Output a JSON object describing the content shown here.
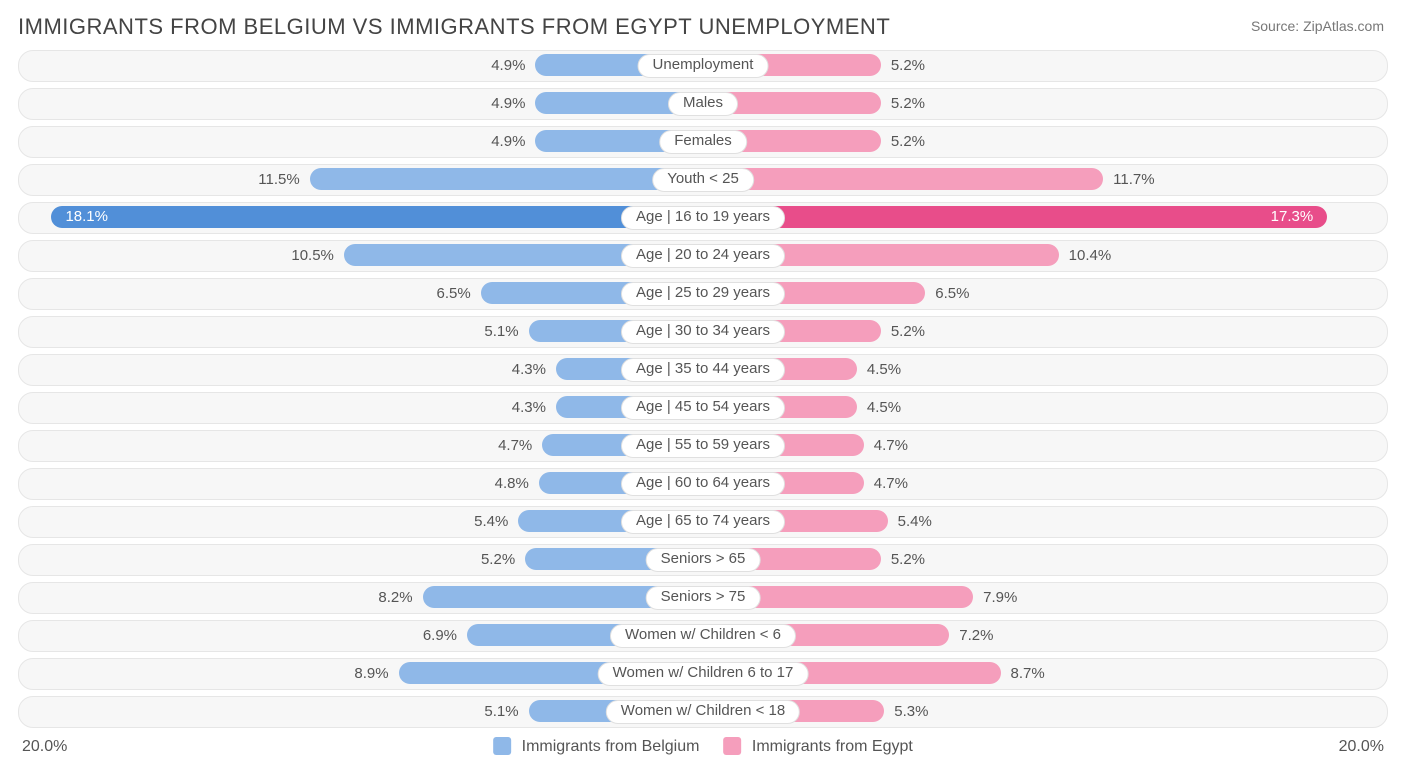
{
  "title": "IMMIGRANTS FROM BELGIUM VS IMMIGRANTS FROM EGYPT UNEMPLOYMENT",
  "source_label": "Source: ZipAtlas.com",
  "chart": {
    "type": "diverging-bar",
    "max_percent": 20.0,
    "axis_left_label": "20.0%",
    "axis_right_label": "20.0%",
    "blue_color": "#8fb8e8",
    "pink_color": "#f59ebc",
    "blue_highlight": "#518fd8",
    "pink_highlight": "#e84d8a",
    "track_bg": "#f7f7f7",
    "track_border": "#e6e6e6",
    "text_color": "#555555",
    "legend": {
      "blue_label": "Immigrants from Belgium",
      "pink_label": "Immigrants from Egypt"
    },
    "rows": [
      {
        "label": "Unemployment",
        "blue": 4.9,
        "pink": 5.2,
        "blue_txt": "4.9%",
        "pink_txt": "5.2%"
      },
      {
        "label": "Males",
        "blue": 4.9,
        "pink": 5.2,
        "blue_txt": "4.9%",
        "pink_txt": "5.2%"
      },
      {
        "label": "Females",
        "blue": 4.9,
        "pink": 5.2,
        "blue_txt": "4.9%",
        "pink_txt": "5.2%"
      },
      {
        "label": "Youth < 25",
        "blue": 11.5,
        "pink": 11.7,
        "blue_txt": "11.5%",
        "pink_txt": "11.7%"
      },
      {
        "label": "Age | 16 to 19 years",
        "blue": 18.1,
        "pink": 17.3,
        "blue_txt": "18.1%",
        "pink_txt": "17.3%",
        "highlight": true
      },
      {
        "label": "Age | 20 to 24 years",
        "blue": 10.5,
        "pink": 10.4,
        "blue_txt": "10.5%",
        "pink_txt": "10.4%"
      },
      {
        "label": "Age | 25 to 29 years",
        "blue": 6.5,
        "pink": 6.5,
        "blue_txt": "6.5%",
        "pink_txt": "6.5%"
      },
      {
        "label": "Age | 30 to 34 years",
        "blue": 5.1,
        "pink": 5.2,
        "blue_txt": "5.1%",
        "pink_txt": "5.2%"
      },
      {
        "label": "Age | 35 to 44 years",
        "blue": 4.3,
        "pink": 4.5,
        "blue_txt": "4.3%",
        "pink_txt": "4.5%"
      },
      {
        "label": "Age | 45 to 54 years",
        "blue": 4.3,
        "pink": 4.5,
        "blue_txt": "4.3%",
        "pink_txt": "4.5%"
      },
      {
        "label": "Age | 55 to 59 years",
        "blue": 4.7,
        "pink": 4.7,
        "blue_txt": "4.7%",
        "pink_txt": "4.7%"
      },
      {
        "label": "Age | 60 to 64 years",
        "blue": 4.8,
        "pink": 4.7,
        "blue_txt": "4.8%",
        "pink_txt": "4.7%"
      },
      {
        "label": "Age | 65 to 74 years",
        "blue": 5.4,
        "pink": 5.4,
        "blue_txt": "5.4%",
        "pink_txt": "5.4%"
      },
      {
        "label": "Seniors > 65",
        "blue": 5.2,
        "pink": 5.2,
        "blue_txt": "5.2%",
        "pink_txt": "5.2%"
      },
      {
        "label": "Seniors > 75",
        "blue": 8.2,
        "pink": 7.9,
        "blue_txt": "8.2%",
        "pink_txt": "7.9%"
      },
      {
        "label": "Women w/ Children < 6",
        "blue": 6.9,
        "pink": 7.2,
        "blue_txt": "6.9%",
        "pink_txt": "7.2%"
      },
      {
        "label": "Women w/ Children 6 to 17",
        "blue": 8.9,
        "pink": 8.7,
        "blue_txt": "8.9%",
        "pink_txt": "8.7%"
      },
      {
        "label": "Women w/ Children < 18",
        "blue": 5.1,
        "pink": 5.3,
        "blue_txt": "5.1%",
        "pink_txt": "5.3%"
      }
    ]
  }
}
